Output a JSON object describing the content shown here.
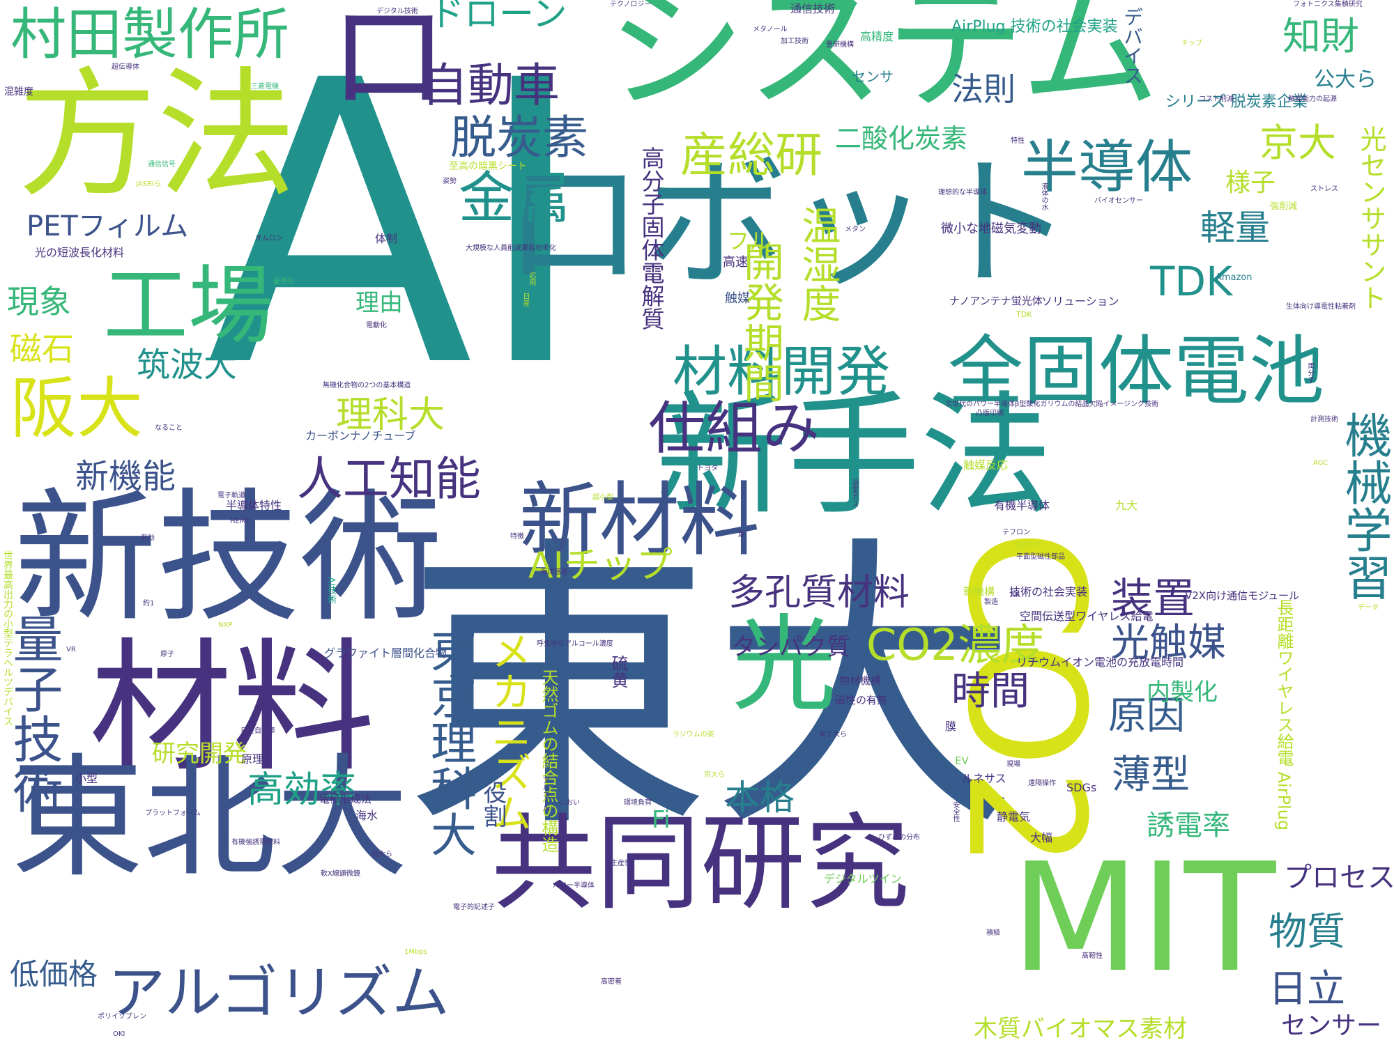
{
  "palette": {
    "deep": "#46327e",
    "indigo": "#3b528b",
    "blue": "#365c8d",
    "teal": "#277f8e",
    "green": "#21918c",
    "sea": "#1fa187",
    "mint": "#35b779",
    "lime": "#6ece58",
    "yellow": "#b5de2b",
    "gold": "#d8e219",
    "bright": "#fde725"
  },
  "words": [
    {
      "text": "AI"
    },
    {
      "text": "東大"
    },
    {
      "text": "新技術"
    },
    {
      "text": "材料"
    },
    {
      "text": "東北大"
    },
    {
      "text": "新手法"
    },
    {
      "text": "ロボット"
    },
    {
      "text": "システム"
    },
    {
      "text": "方法"
    },
    {
      "text": "ロ"
    },
    {
      "text": "CO2"
    },
    {
      "text": "MIT"
    },
    {
      "text": "共同研究"
    },
    {
      "text": "新材料"
    },
    {
      "text": "光"
    },
    {
      "text": "全固体電池"
    },
    {
      "text": "工場"
    },
    {
      "text": "材料開発"
    },
    {
      "text": "村田製作所"
    },
    {
      "text": "仕組み"
    },
    {
      "text": "阪大"
    },
    {
      "text": "アルゴリズム"
    },
    {
      "text": "金属"
    },
    {
      "text": "産総研"
    },
    {
      "text": "自動車"
    },
    {
      "text": "半導体"
    },
    {
      "text": "脱炭素"
    },
    {
      "text": "人工知能"
    },
    {
      "text": "量子技術"
    },
    {
      "text": "東京理科大"
    },
    {
      "text": "機械学習"
    },
    {
      "text": "CO2濃度"
    },
    {
      "text": "開発期間"
    },
    {
      "text": "温湿度"
    },
    {
      "text": "メカニズム"
    },
    {
      "text": "多孔質材料"
    },
    {
      "text": "光センササント"
    },
    {
      "text": "知財"
    },
    {
      "text": "京大"
    },
    {
      "text": "ドローン"
    },
    {
      "text": "装置"
    },
    {
      "text": "光触媒"
    },
    {
      "text": "時間"
    },
    {
      "text": "原因"
    },
    {
      "text": "AIチップ"
    },
    {
      "text": "TDK"
    },
    {
      "text": "軽量"
    },
    {
      "text": "新機能"
    },
    {
      "text": "磁石"
    },
    {
      "text": "現象"
    },
    {
      "text": "筑波大"
    },
    {
      "text": "理科大"
    },
    {
      "text": "高効率"
    },
    {
      "text": "本格"
    },
    {
      "text": "薄型"
    },
    {
      "text": "物質"
    },
    {
      "text": "日立"
    },
    {
      "text": "プロセス"
    },
    {
      "text": "センサー"
    },
    {
      "text": "低価格"
    },
    {
      "text": "PETフィルム"
    },
    {
      "text": "法則"
    },
    {
      "text": "二酸化炭素"
    },
    {
      "text": "高分子固体電解質"
    },
    {
      "text": "天然ゴムの結合点の構造"
    },
    {
      "text": "研究開発"
    },
    {
      "text": "誘電率"
    },
    {
      "text": "木質バイオマス素材"
    },
    {
      "text": "様子"
    },
    {
      "text": "公大ら"
    },
    {
      "text": "フル"
    },
    {
      "text": "理由"
    },
    {
      "text": "タンパク質"
    },
    {
      "text": "内製化"
    },
    {
      "text": "役割"
    },
    {
      "text": "デバイス"
    },
    {
      "text": "Fi"
    },
    {
      "text": "長距離ワイヤレス給電 AirPlug"
    },
    {
      "text": "硫黄"
    },
    {
      "text": "AirPlug 技術の社会実装"
    },
    {
      "text": "シリーズ 脱炭素企業"
    },
    {
      "text": "通信技術"
    },
    {
      "text": "高精度"
    },
    {
      "text": "センサ"
    },
    {
      "text": "微小な地磁気変動"
    },
    {
      "text": "高速"
    },
    {
      "text": "触媒"
    },
    {
      "text": "ナノアンテナ蛍光体"
    },
    {
      "text": "ソリューション"
    },
    {
      "text": "光の短波長化材料"
    },
    {
      "text": "体制"
    },
    {
      "text": "カーボンナノチューブ"
    },
    {
      "text": "半導体特性"
    },
    {
      "text": "有機半導体"
    },
    {
      "text": "触媒反応"
    },
    {
      "text": "九大"
    },
    {
      "text": "技術の社会実装"
    },
    {
      "text": "V2X向け通信モジュール"
    },
    {
      "text": "空間伝送型ワイヤレス給電"
    },
    {
      "text": "グラファイト層間化合物"
    },
    {
      "text": "リチウムイオン電池の充放電時間"
    },
    {
      "text": "物材機構"
    },
    {
      "text": "磁性の有無"
    },
    {
      "text": "膜"
    },
    {
      "text": "原理"
    },
    {
      "text": "ルネサス"
    },
    {
      "text": "電極形成法"
    },
    {
      "text": "海水"
    },
    {
      "text": "小型"
    },
    {
      "text": "静電気"
    },
    {
      "text": "大幅"
    },
    {
      "text": "SDGs"
    },
    {
      "text": "EV"
    },
    {
      "text": "デジタルツイン"
    },
    {
      "text": "新機構"
    },
    {
      "text": "混雑度"
    },
    {
      "text": "世界最高出力の小型テラヘルツデバイス"
    },
    {
      "text": "デジタル技術"
    },
    {
      "text": "テクノロジー"
    },
    {
      "text": "メタノール"
    },
    {
      "text": "加工技術"
    },
    {
      "text": "量研機構"
    },
    {
      "text": "フォトニクス集積研究"
    },
    {
      "text": "チップ"
    },
    {
      "text": "コスト削減"
    },
    {
      "text": "触媒能力の起源"
    },
    {
      "text": "超伝導体"
    },
    {
      "text": "三菱電機"
    },
    {
      "text": "通信信号"
    },
    {
      "text": "至高の暗黒シート"
    },
    {
      "text": "特性"
    },
    {
      "text": "姿勢"
    },
    {
      "text": "JASRIら"
    },
    {
      "text": "理想的な半導体"
    },
    {
      "text": "液体の水"
    },
    {
      "text": "ストレス"
    },
    {
      "text": "強削減"
    },
    {
      "text": "バイオセンサー"
    },
    {
      "text": "オムロン"
    },
    {
      "text": "メタン"
    },
    {
      "text": "大規模な人員削減業務効率化"
    },
    {
      "text": "最適化"
    },
    {
      "text": "応用"
    },
    {
      "text": "Amazon"
    },
    {
      "text": "日産"
    },
    {
      "text": "TDK"
    },
    {
      "text": "生体向け導電性粘着剤"
    },
    {
      "text": "電動化"
    },
    {
      "text": "無機化合物の2つの基本構造"
    },
    {
      "text": "次世代のパワー半導体β型酸化ガリウムの結晶欠陥イメージング技術"
    },
    {
      "text": "両分子"
    },
    {
      "text": "凸版印刷"
    },
    {
      "text": "計測技術"
    },
    {
      "text": "なること"
    },
    {
      "text": "AGC"
    },
    {
      "text": "トヨタ"
    },
    {
      "text": "電子軌道"
    },
    {
      "text": "温室ガス"
    },
    {
      "text": "超小型"
    },
    {
      "text": "HEMT"
    },
    {
      "text": "テフロン"
    },
    {
      "text": "信越化学"
    },
    {
      "text": "有効"
    },
    {
      "text": "特徴"
    },
    {
      "text": "車"
    },
    {
      "text": "平面型磁性部品"
    },
    {
      "text": "海洋惑星"
    },
    {
      "text": "AI技術"
    },
    {
      "text": "製造"
    },
    {
      "text": "AR"
    },
    {
      "text": "データ"
    },
    {
      "text": "約1"
    },
    {
      "text": "NXP"
    },
    {
      "text": "VR"
    },
    {
      "text": "原子"
    },
    {
      "text": "呼気中のアルコール濃度"
    },
    {
      "text": "日産自動車"
    },
    {
      "text": "ラジウムの姿"
    },
    {
      "text": "東工大ら"
    },
    {
      "text": "現場"
    },
    {
      "text": "京大ら"
    },
    {
      "text": "遠隔操作"
    },
    {
      "text": "アルコール"
    },
    {
      "text": "におい"
    },
    {
      "text": "環境負荷"
    },
    {
      "text": "安全性"
    },
    {
      "text": "プラットフォーム"
    },
    {
      "text": "ひずみの分布"
    },
    {
      "text": "有機強誘電材料"
    },
    {
      "text": "名大ら"
    },
    {
      "text": "生産性"
    },
    {
      "text": "パワー半導体"
    },
    {
      "text": "軟X線顕微鏡"
    },
    {
      "text": "電子的記述子"
    },
    {
      "text": "積極"
    },
    {
      "text": "高靭性"
    },
    {
      "text": "1Mbps"
    },
    {
      "text": "高密着"
    },
    {
      "text": "ポリイソプレン"
    },
    {
      "text": "OKI"
    }
  ]
}
